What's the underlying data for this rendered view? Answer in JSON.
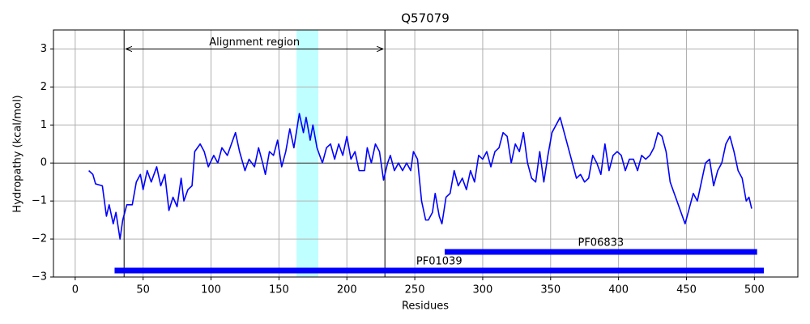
{
  "chart_data": {
    "type": "line",
    "title": "Q57079",
    "x_label": "Residues",
    "y_label": "Hydropathy (kcal/mol)",
    "xlim": [
      -16,
      532
    ],
    "ylim": [
      -3,
      3.5
    ],
    "xticks": [
      0,
      50,
      100,
      150,
      200,
      250,
      300,
      350,
      400,
      450,
      500
    ],
    "yticks": [
      {
        "value": -3,
        "label": "−3"
      },
      {
        "value": -2,
        "label": "−2"
      },
      {
        "value": -1,
        "label": "−1"
      },
      0,
      1,
      2,
      3
    ],
    "grid": true,
    "series": [
      {
        "color": "#0000ff",
        "x": [
          10,
          13,
          15,
          20,
          23,
          25,
          28,
          30,
          33,
          35,
          38,
          42,
          45,
          48,
          50,
          53,
          56,
          60,
          63,
          66,
          69,
          72,
          75,
          78,
          80,
          83,
          86,
          88,
          92,
          95,
          98,
          102,
          105,
          108,
          112,
          115,
          118,
          121,
          125,
          128,
          132,
          135,
          138,
          140,
          143,
          146,
          149,
          152,
          155,
          158,
          161,
          165,
          168,
          170,
          173,
          175,
          178,
          182,
          185,
          188,
          191,
          194,
          197,
          200,
          203,
          206,
          209,
          213,
          215,
          218,
          221,
          224,
          227,
          230,
          232,
          235,
          238,
          241,
          244,
          247,
          249,
          252,
          255,
          258,
          260,
          263,
          265,
          268,
          270,
          273,
          276,
          279,
          282,
          285,
          288,
          291,
          294,
          297,
          300,
          303,
          306,
          309,
          312,
          315,
          318,
          321,
          324,
          327,
          330,
          333,
          336,
          339,
          342,
          345,
          348,
          351,
          354,
          357,
          360,
          363,
          366,
          369,
          372,
          375,
          378,
          381,
          384,
          387,
          390,
          393,
          396,
          399,
          402,
          405,
          408,
          411,
          414,
          417,
          420,
          423,
          426,
          429,
          432,
          435,
          438,
          441,
          443,
          446,
          449,
          452,
          455,
          458,
          461,
          464,
          467,
          470,
          473,
          476,
          479,
          482,
          485,
          488,
          491,
          494,
          496,
          498
        ],
        "values": [
          -0.2,
          -0.3,
          -0.55,
          -0.6,
          -1.4,
          -1.1,
          -1.6,
          -1.3,
          -2.0,
          -1.5,
          -1.1,
          -1.1,
          -0.5,
          -0.3,
          -0.7,
          -0.2,
          -0.5,
          -0.1,
          -0.6,
          -0.3,
          -1.25,
          -0.9,
          -1.15,
          -0.4,
          -1.0,
          -0.7,
          -0.6,
          0.3,
          0.5,
          0.3,
          -0.1,
          0.2,
          0.0,
          0.4,
          0.2,
          0.5,
          0.8,
          0.3,
          -0.2,
          0.1,
          -0.1,
          0.4,
          0.0,
          -0.3,
          0.3,
          0.2,
          0.6,
          -0.1,
          0.3,
          0.9,
          0.4,
          1.3,
          0.8,
          1.2,
          0.6,
          1.0,
          0.4,
          0.0,
          0.4,
          0.5,
          0.1,
          0.5,
          0.2,
          0.7,
          0.1,
          0.3,
          -0.2,
          -0.2,
          0.4,
          0.0,
          0.5,
          0.3,
          -0.45,
          0.0,
          0.2,
          -0.2,
          0.0,
          -0.2,
          0.0,
          -0.2,
          0.3,
          0.1,
          -1.0,
          -1.5,
          -1.5,
          -1.3,
          -0.8,
          -1.4,
          -1.6,
          -0.9,
          -0.8,
          -0.2,
          -0.6,
          -0.4,
          -0.7,
          -0.2,
          -0.5,
          0.2,
          0.1,
          0.3,
          -0.1,
          0.3,
          0.4,
          0.8,
          0.7,
          0.0,
          0.5,
          0.3,
          0.8,
          0.0,
          -0.4,
          -0.5,
          0.3,
          -0.5,
          0.2,
          0.8,
          1.0,
          1.2,
          0.8,
          0.4,
          0.0,
          -0.4,
          -0.3,
          -0.5,
          -0.4,
          0.2,
          0.0,
          -0.3,
          0.5,
          -0.2,
          0.2,
          0.3,
          0.2,
          -0.2,
          0.1,
          0.1,
          -0.2,
          0.2,
          0.1,
          0.2,
          0.4,
          0.8,
          0.7,
          0.3,
          -0.5,
          -0.8,
          -1.0,
          -1.3,
          -1.6,
          -1.2,
          -0.8,
          -1.0,
          -0.5,
          0.0,
          0.1,
          -0.6,
          -0.2,
          0.0,
          0.5,
          0.7,
          0.3,
          -0.2,
          -0.4,
          -1.0,
          -0.9,
          -1.2
        ]
      }
    ],
    "hline": 0,
    "vlines": [
      36,
      228
    ],
    "span": {
      "start": 163,
      "end": 179,
      "color": "#bfffff"
    },
    "annotation": {
      "text": "Alignment region",
      "start": 36,
      "end": 228,
      "y": 3
    },
    "segments": [
      {
        "name": "PF06833",
        "start": 272,
        "end": 502,
        "y": -2.34,
        "color": "#0000ff"
      },
      {
        "name": "PF01039",
        "start": 29,
        "end": 507,
        "y": -2.83,
        "color": "#0000ff"
      }
    ]
  }
}
